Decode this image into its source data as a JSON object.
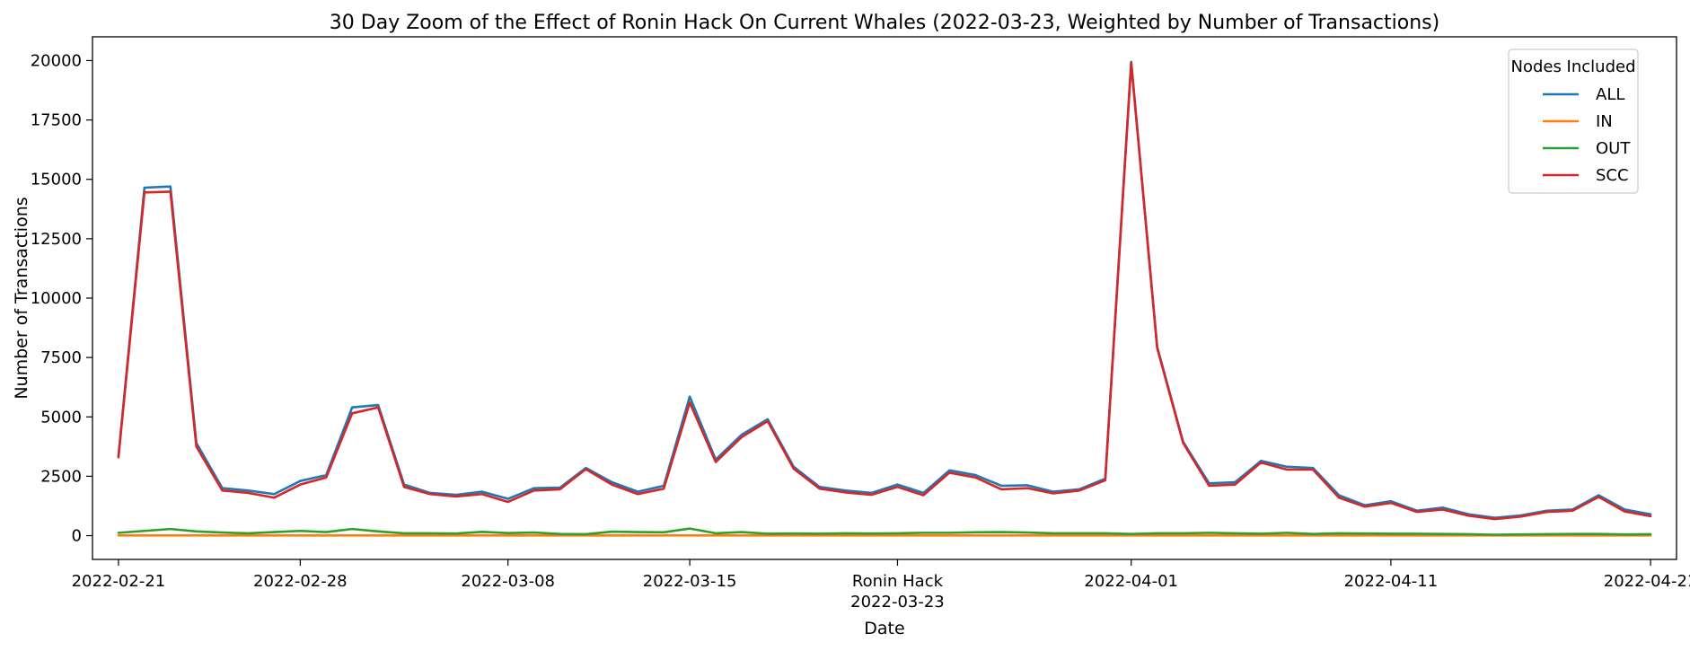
{
  "chart_data": {
    "type": "line",
    "title": "30 Day Zoom of the Effect of Ronin Hack On Current Whales (2022-03-23, Weighted by Number of Transactions)",
    "xlabel": "Date",
    "ylabel": "Number of Transactions",
    "ylim": [
      -1000,
      21000
    ],
    "xlim": [
      "2022-02-20",
      "2022-04-22"
    ],
    "yticks": [
      0,
      2500,
      5000,
      7500,
      10000,
      12500,
      15000,
      17500,
      20000
    ],
    "xticks": [
      {
        "date": "2022-02-21",
        "label": "2022-02-21"
      },
      {
        "date": "2022-02-28",
        "label": "2022-02-28"
      },
      {
        "date": "2022-03-08",
        "label": "2022-03-08"
      },
      {
        "date": "2022-03-15",
        "label": "2022-03-15"
      },
      {
        "date": "2022-03-23",
        "label": "Ronin Hack",
        "label2": "2022-03-23"
      },
      {
        "date": "2022-04-01",
        "label": "2022-04-01"
      },
      {
        "date": "2022-04-11",
        "label": "2022-04-11"
      },
      {
        "date": "2022-04-21",
        "label": "2022-04-21"
      }
    ],
    "grid": false,
    "legend": {
      "title": "Nodes Included",
      "position": "top-right"
    },
    "x": [
      "2022-02-21",
      "2022-02-22",
      "2022-02-23",
      "2022-02-24",
      "2022-02-25",
      "2022-02-26",
      "2022-02-27",
      "2022-02-28",
      "2022-03-01",
      "2022-03-02",
      "2022-03-03",
      "2022-03-04",
      "2022-03-05",
      "2022-03-06",
      "2022-03-07",
      "2022-03-08",
      "2022-03-09",
      "2022-03-10",
      "2022-03-11",
      "2022-03-12",
      "2022-03-13",
      "2022-03-14",
      "2022-03-15",
      "2022-03-16",
      "2022-03-17",
      "2022-03-18",
      "2022-03-19",
      "2022-03-20",
      "2022-03-21",
      "2022-03-22",
      "2022-03-23",
      "2022-03-24",
      "2022-03-25",
      "2022-03-26",
      "2022-03-27",
      "2022-03-28",
      "2022-03-29",
      "2022-03-30",
      "2022-03-31",
      "2022-04-01",
      "2022-04-02",
      "2022-04-03",
      "2022-04-04",
      "2022-04-05",
      "2022-04-06",
      "2022-04-07",
      "2022-04-08",
      "2022-04-09",
      "2022-04-10",
      "2022-04-11",
      "2022-04-12",
      "2022-04-13",
      "2022-04-14",
      "2022-04-15",
      "2022-04-16",
      "2022-04-17",
      "2022-04-18",
      "2022-04-19",
      "2022-04-20",
      "2022-04-21"
    ],
    "series": [
      {
        "name": "ALL",
        "color": "#1f77b4",
        "values": [
          3350,
          14650,
          14700,
          3900,
          2000,
          1900,
          1750,
          2300,
          2550,
          5400,
          5500,
          2150,
          1800,
          1720,
          1850,
          1550,
          2000,
          2020,
          2850,
          2250,
          1850,
          2100,
          5850,
          3200,
          4250,
          4900,
          2900,
          2050,
          1900,
          1800,
          2150,
          1800,
          2750,
          2550,
          2100,
          2120,
          1850,
          1950,
          2400,
          19950,
          7950,
          3950,
          2200,
          2250,
          3150,
          2900,
          2850,
          1700,
          1280,
          1450,
          1050,
          1180,
          900,
          750,
          850,
          1050,
          1100,
          1700,
          1100,
          900
        ]
      },
      {
        "name": "IN",
        "color": "#ff7f0e",
        "values": [
          10,
          10,
          10,
          10,
          10,
          10,
          10,
          10,
          10,
          10,
          10,
          10,
          10,
          10,
          10,
          10,
          10,
          10,
          10,
          10,
          10,
          10,
          10,
          10,
          10,
          10,
          10,
          10,
          10,
          10,
          10,
          10,
          10,
          10,
          10,
          10,
          10,
          10,
          10,
          10,
          10,
          10,
          10,
          10,
          10,
          10,
          10,
          10,
          10,
          10,
          10,
          10,
          10,
          10,
          10,
          10,
          10,
          10,
          10,
          10
        ]
      },
      {
        "name": "OUT",
        "color": "#2ca02c",
        "values": [
          120,
          200,
          280,
          180,
          130,
          100,
          150,
          200,
          150,
          280,
          180,
          100,
          100,
          90,
          160,
          110,
          130,
          70,
          60,
          170,
          150,
          140,
          300,
          100,
          150,
          80,
          90,
          80,
          100,
          90,
          100,
          120,
          120,
          140,
          150,
          130,
          100,
          100,
          100,
          70,
          100,
          100,
          120,
          100,
          80,
          120,
          70,
          100,
          90,
          80,
          80,
          70,
          60,
          40,
          50,
          60,
          70,
          70,
          50,
          60
        ]
      },
      {
        "name": "SCC",
        "color": "#d62728",
        "values": [
          3300,
          14450,
          14480,
          3750,
          1900,
          1800,
          1600,
          2150,
          2450,
          5150,
          5400,
          2050,
          1750,
          1650,
          1750,
          1420,
          1900,
          1950,
          2800,
          2150,
          1750,
          1980,
          5600,
          3100,
          4150,
          4820,
          2820,
          1980,
          1820,
          1720,
          2050,
          1700,
          2650,
          2450,
          1950,
          2000,
          1780,
          1900,
          2330,
          19900,
          7900,
          3900,
          2100,
          2150,
          3080,
          2780,
          2780,
          1600,
          1220,
          1380,
          1000,
          1100,
          840,
          700,
          800,
          1000,
          1050,
          1630,
          1020,
          820
        ]
      }
    ]
  }
}
